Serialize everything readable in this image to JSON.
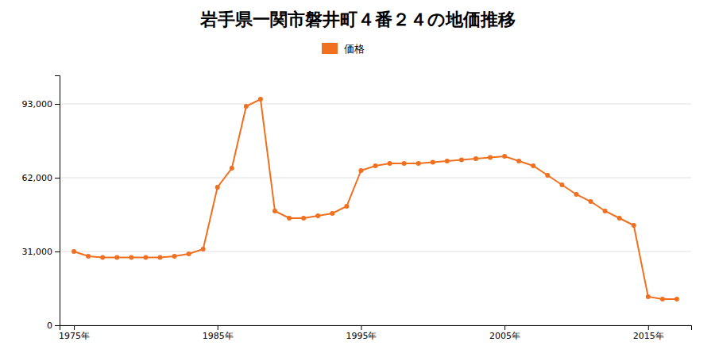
{
  "chart_data": {
    "type": "line",
    "title": "岩手県一関市磐井町４番２４の地価推移",
    "x": [
      1975,
      1976,
      1977,
      1978,
      1979,
      1980,
      1981,
      1982,
      1983,
      1984,
      1985,
      1986,
      1987,
      1988,
      1989,
      1990,
      1991,
      1992,
      1993,
      1994,
      1995,
      1996,
      1997,
      1998,
      1999,
      2000,
      2001,
      2002,
      2003,
      2004,
      2005,
      2006,
      2007,
      2008,
      2009,
      2010,
      2011,
      2012,
      2013,
      2014,
      2015,
      2016,
      2017
    ],
    "series": [
      {
        "name": "価格",
        "color": "#f07020",
        "marker": "circle",
        "values": [
          31000,
          29000,
          28500,
          28500,
          28500,
          28500,
          28500,
          29000,
          30000,
          32000,
          58000,
          66000,
          92000,
          95000,
          48000,
          45000,
          45000,
          46000,
          47000,
          50000,
          65000,
          67000,
          68000,
          68000,
          68000,
          68500,
          69000,
          69500,
          70000,
          70500,
          71000,
          69000,
          67000,
          63000,
          59000,
          55000,
          52000,
          48000,
          45000,
          42000,
          12000,
          11000,
          11000
        ]
      }
    ],
    "xlim": [
      1974,
      2018
    ],
    "xticks": [
      {
        "value": 1975,
        "label": "1975年"
      },
      {
        "value": 1985,
        "label": "1985年"
      },
      {
        "value": 1995,
        "label": "1995年"
      },
      {
        "value": 2005,
        "label": "2005年"
      },
      {
        "value": 2015,
        "label": "2015年"
      }
    ],
    "ylim": [
      0,
      105000
    ],
    "yticks": [
      0,
      {
        "value": 31000,
        "label": "31,000"
      },
      {
        "value": 62000,
        "label": "62,000"
      },
      {
        "value": 93000,
        "label": "93,000"
      }
    ],
    "grid": true,
    "legend": "top"
  }
}
